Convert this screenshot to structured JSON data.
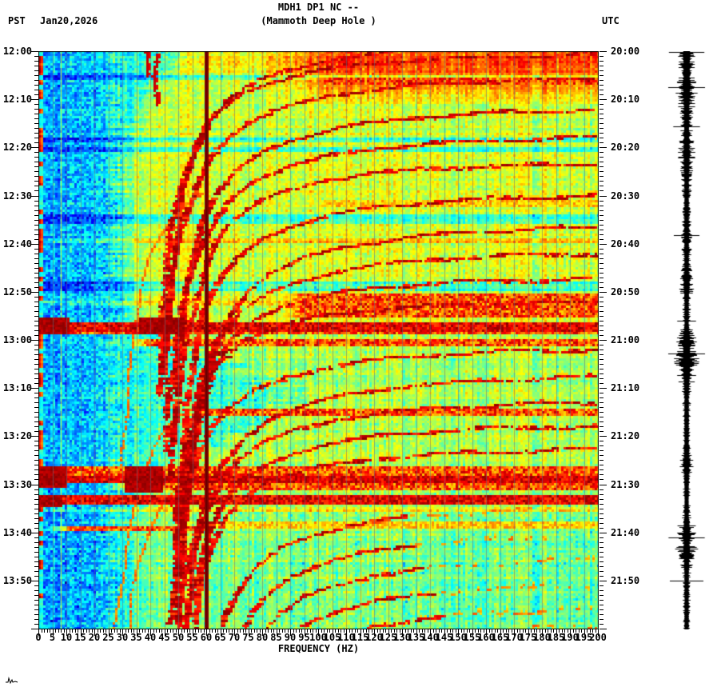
{
  "header": {
    "station_line": "MDH1 DP1 NC --",
    "location_line": "(Mammoth Deep Hole )",
    "tz_left": "PST",
    "date": "Jan20,2026",
    "tz_right": "UTC"
  },
  "x_axis": {
    "label": "FREQUENCY (HZ)",
    "min_hz": 0,
    "max_hz": 200,
    "major_step_hz": 5,
    "minor_step_hz": 1,
    "tick_labels": [
      "0",
      "5",
      "10",
      "15",
      "20",
      "25",
      "30",
      "35",
      "40",
      "45",
      "50",
      "55",
      "60",
      "65",
      "70",
      "75",
      "80",
      "85",
      "90",
      "95",
      "100",
      "105",
      "110",
      "115",
      "120",
      "125",
      "130",
      "135",
      "140",
      "145",
      "150",
      "155",
      "160",
      "165",
      "170",
      "175",
      "180",
      "185",
      "190",
      "195",
      "200"
    ]
  },
  "y_axis_left": {
    "timezone": "PST",
    "major_step_min": 10,
    "minor_step_min": 1,
    "labels": [
      "12:00",
      "12:10",
      "12:20",
      "12:30",
      "12:40",
      "12:50",
      "13:00",
      "13:10",
      "13:20",
      "13:30",
      "13:40",
      "13:50"
    ]
  },
  "y_axis_right": {
    "timezone": "UTC",
    "labels": [
      "20:00",
      "20:10",
      "20:20",
      "20:30",
      "20:40",
      "20:50",
      "21:00",
      "21:10",
      "21:20",
      "21:30",
      "21:40",
      "21:50"
    ]
  },
  "chart_data": {
    "type": "heatmap",
    "title": "MDH1 DP1 NC -- (Mammoth Deep Hole )",
    "xlabel": "FREQUENCY (HZ)",
    "x_range_hz": [
      0,
      200
    ],
    "time_start_pst": "12:00",
    "time_end_pst": "14:00",
    "time_start_utc": "20:00",
    "colormap": "jet",
    "grid_lines_hz_step": 5,
    "seed": 1234567,
    "features": {
      "mains_hum_line_hz": 60,
      "low_freq_cal_line_hz": 8,
      "late_meander_line": {
        "hz": 71.5,
        "t0_min": 95.5,
        "t1_min": 120
      },
      "blue_quiet_band_hz": 27,
      "cool_boundary_hz_by_min": [
        [
          0,
          52
        ],
        [
          8,
          40
        ],
        [
          12,
          34
        ],
        [
          22,
          29
        ],
        [
          46,
          29
        ],
        [
          56,
          30
        ],
        [
          58,
          42
        ],
        [
          62,
          58
        ],
        [
          66,
          72
        ],
        [
          70,
          86
        ],
        [
          76,
          92
        ],
        [
          80,
          70
        ],
        [
          84,
          52
        ],
        [
          87,
          40
        ],
        [
          93,
          38
        ],
        [
          95,
          34
        ],
        [
          100,
          31
        ],
        [
          108,
          30
        ],
        [
          120,
          30
        ]
      ],
      "arc_shape_dx_dt": [
        [
          8,
          1000
        ],
        [
          10,
          760
        ],
        [
          13,
          576
        ],
        [
          17,
          450
        ],
        [
          22,
          360
        ],
        [
          28,
          288
        ],
        [
          36,
          230
        ],
        [
          46,
          180
        ],
        [
          60,
          137
        ],
        [
          78,
          101
        ],
        [
          100,
          76
        ],
        [
          130,
          54
        ],
        [
          170,
          38
        ],
        [
          220,
          25
        ],
        [
          280,
          16
        ],
        [
          350,
          10
        ],
        [
          440,
          5.5
        ],
        [
          560,
          2.7
        ],
        [
          700,
          0
        ]
      ],
      "event_bands": [
        {
          "t0": 5.7,
          "t1": 6.7,
          "f0": 95,
          "f1": 200,
          "level": 1
        },
        {
          "t0": 31.4,
          "t1": 32.2,
          "f0": 95,
          "f1": 200,
          "level": 0
        },
        {
          "t0": 50.5,
          "t1": 55.3,
          "f0": 85,
          "f1": 200,
          "level": 1
        },
        {
          "t0": 56.4,
          "t1": 57.9,
          "f0": 0,
          "f1": 200,
          "level": 2
        },
        {
          "t0": 57.9,
          "t1": 58.8,
          "f0": 0,
          "f1": 200,
          "level": 1
        },
        {
          "t0": 59.9,
          "t1": 60.9,
          "f0": 30,
          "f1": 200,
          "level": 1
        },
        {
          "t0": 74.3,
          "t1": 75.4,
          "f0": 50,
          "f1": 200,
          "level": 1
        },
        {
          "t0": 86.6,
          "t1": 89.3,
          "f0": 0,
          "f1": 200,
          "level": 1
        },
        {
          "t0": 88.4,
          "t1": 89.3,
          "f0": 0,
          "f1": 200,
          "level": 2
        },
        {
          "t0": 89.3,
          "t1": 91.0,
          "f0": 25,
          "f1": 200,
          "level": 1
        },
        {
          "t0": 92.6,
          "t1": 94.2,
          "f0": 0,
          "f1": 200,
          "level": 2
        },
        {
          "t0": 98.1,
          "t1": 98.9,
          "f0": 55,
          "f1": 200,
          "level": 0
        },
        {
          "t0": 98.9,
          "t1": 99.6,
          "f0": 2,
          "f1": 62,
          "level": 1
        }
      ],
      "event_blobs": [
        {
          "t0": 55.6,
          "t1": 58.6,
          "f0": 36,
          "f1": 52
        },
        {
          "t0": 55.8,
          "t1": 58.8,
          "f0": 0,
          "f1": 11
        },
        {
          "t0": 86.3,
          "t1": 91.6,
          "f0": 31,
          "f1": 44
        },
        {
          "t0": 86.5,
          "t1": 90.3,
          "f0": 0,
          "f1": 10
        },
        {
          "t0": 92.6,
          "t1": 94.6,
          "f0": 0,
          "f1": 8
        }
      ],
      "glide_arcs": [
        {
          "t_top_min": -2.0,
          "fa_hz": 38,
          "sx": 1.0,
          "sy": 1.0
        },
        {
          "t_top_min": 0.4,
          "fa_hz": 40,
          "sx": 0.95,
          "sy": 0.9
        },
        {
          "t_top_min": 5.3,
          "fa_hz": 39,
          "sx": 1.0,
          "sy": 1.0
        },
        {
          "t_top_min": 11.5,
          "fa_hz": 40,
          "sx": 1.1,
          "sy": 1.05
        },
        {
          "t_top_min": 17.5,
          "fa_hz": 41.5,
          "sx": 1.0,
          "sy": 1.0
        },
        {
          "t_top_min": 23.0,
          "fa_hz": 43,
          "sx": 0.95,
          "sy": 0.95
        },
        {
          "t_top_min": 29.5,
          "fa_hz": 43.5,
          "sx": 1.0,
          "sy": 1.05
        },
        {
          "t_top_min": 36.0,
          "fa_hz": 44.5,
          "sx": 1.05,
          "sy": 1.1
        },
        {
          "t_top_min": 41.5,
          "fa_hz": 45,
          "sx": 1.0,
          "sy": 1.0
        },
        {
          "t_top_min": 47.0,
          "fa_hz": 45.5,
          "sx": 0.9,
          "sy": 0.9
        },
        {
          "t_top_min": 52.0,
          "fa_hz": 46,
          "sx": 0.85,
          "sy": 0.8
        },
        {
          "t_top_min": 61.5,
          "fa_hz": 40,
          "sx": 1.0,
          "sy": 1.0
        },
        {
          "t_top_min": 67.0,
          "fa_hz": 42,
          "sx": 1.1,
          "sy": 1.05
        },
        {
          "t_top_min": 72.5,
          "fa_hz": 43.5,
          "sx": 1.0,
          "sy": 1.0
        },
        {
          "t_top_min": 77.5,
          "fa_hz": 45,
          "sx": 0.95,
          "sy": 0.95
        },
        {
          "t_top_min": 82.5,
          "fa_hz": 46.5,
          "sx": 0.9,
          "sy": 0.9
        },
        {
          "t_top_min": 94.5,
          "fa_hz": 51,
          "sx": 0.95,
          "sy": 1.0
        },
        {
          "t_top_min": 100.0,
          "fa_hz": 54,
          "sx": 1.0,
          "sy": 1.0
        },
        {
          "t_top_min": 105.0,
          "fa_hz": 58,
          "sx": 1.0,
          "sy": 0.95
        },
        {
          "t_top_min": 110.5,
          "fa_hz": 62,
          "sx": 0.95,
          "sy": 0.9
        },
        {
          "t_top_min": 115.5,
          "fa_hz": 66,
          "sx": 0.9,
          "sy": 0.9
        },
        {
          "t_top_min": 119.0,
          "fa_hz": 68,
          "sx": 0.9,
          "sy": 0.85
        }
      ],
      "sub_arcs": [
        {
          "t_top_min": 19.5,
          "fa_hz": 24
        },
        {
          "t_top_min": 64.0,
          "fa_hz": 21
        },
        {
          "t_top_min": 77.0,
          "fa_hz": 23
        }
      ],
      "vertical_tails": [
        {
          "hz": 38.5,
          "t0": 0,
          "t1": 5.2
        },
        {
          "hz": 42.0,
          "t0": 0.8,
          "t1": 11.5
        }
      ]
    },
    "seismogram_trace": {
      "color": "#000000",
      "envelope": [
        [
          0,
          9
        ],
        [
          25,
          10
        ],
        [
          55,
          11
        ],
        [
          70,
          8
        ],
        [
          92,
          6
        ],
        [
          118,
          8
        ],
        [
          142,
          9
        ],
        [
          152,
          5
        ],
        [
          205,
          3.5
        ],
        [
          232,
          6
        ],
        [
          262,
          3.5
        ],
        [
          296,
          8
        ],
        [
          312,
          4
        ],
        [
          340,
          3.5
        ],
        [
          360,
          10
        ],
        [
          385,
          13
        ],
        [
          405,
          11
        ],
        [
          418,
          6
        ],
        [
          432,
          3.5
        ],
        [
          458,
          4
        ],
        [
          484,
          3
        ],
        [
          505,
          6
        ],
        [
          518,
          7
        ],
        [
          530,
          4
        ],
        [
          556,
          3
        ],
        [
          580,
          3.5
        ],
        [
          590,
          9
        ],
        [
          602,
          11
        ],
        [
          616,
          7
        ],
        [
          622,
          12
        ],
        [
          634,
          8
        ],
        [
          648,
          4
        ],
        [
          700,
          3
        ],
        [
          736,
          3.5
        ],
        [
          775,
          3.5
        ],
        [
          781,
          10
        ],
        [
          786,
          12
        ]
      ],
      "spike_rows": [
        [
          662,
          21
        ]
      ]
    }
  },
  "logo": "tiny-seismogram-squiggle"
}
